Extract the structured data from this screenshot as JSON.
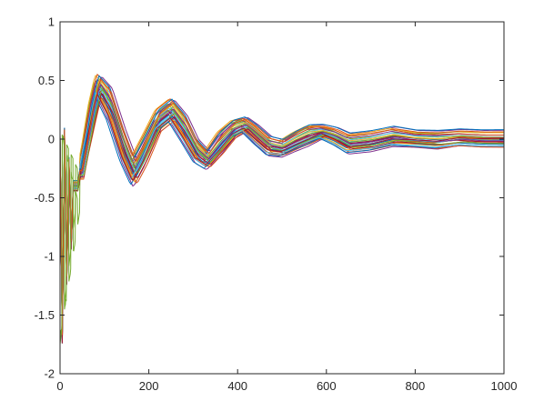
{
  "chart_data": {
    "type": "line",
    "title": "",
    "xlabel": "",
    "ylabel": "",
    "xlim": [
      0,
      1000
    ],
    "ylim": [
      -2,
      1
    ],
    "x_ticks": [
      0,
      200,
      400,
      600,
      800,
      1000
    ],
    "y_ticks": [
      -2,
      -1.5,
      -1,
      -0.5,
      0,
      0.5,
      1
    ],
    "x_tick_labels": [
      "0",
      "200",
      "400",
      "600",
      "800",
      "1000"
    ],
    "y_tick_labels": [
      "-2",
      "-1.5",
      "-1",
      "-0.5",
      "0",
      "0.5",
      "1"
    ],
    "grid": false,
    "legend": "none",
    "series_count": 30,
    "series_colors": [
      "#0072BD",
      "#D95319",
      "#EDB120",
      "#7E2F8E",
      "#77AC30",
      "#4DBEEE",
      "#A2142F"
    ],
    "envelope": {
      "x": [
        0,
        5,
        10,
        15,
        20,
        25,
        30,
        40,
        55,
        70,
        85,
        110,
        140,
        165,
        190,
        220,
        250,
        280,
        305,
        330,
        360,
        390,
        415,
        440,
        470,
        500,
        530,
        560,
        590,
        620,
        650,
        700,
        750,
        800,
        850,
        900,
        950,
        1000
      ],
      "mean": [
        0.0,
        -1.7,
        0.05,
        -1.2,
        -0.2,
        -0.9,
        -0.4,
        -0.4,
        -0.1,
        0.2,
        0.45,
        0.3,
        -0.05,
        -0.28,
        -0.1,
        0.15,
        0.24,
        0.08,
        -0.1,
        -0.18,
        -0.04,
        0.08,
        0.12,
        0.04,
        -0.06,
        -0.08,
        -0.02,
        0.03,
        0.06,
        0.02,
        -0.04,
        -0.02,
        0.02,
        0.0,
        -0.01,
        0.01,
        0.0,
        0.0
      ],
      "min": [
        0.0,
        -1.75,
        0.0,
        -1.25,
        -0.3,
        -1.0,
        -0.5,
        -0.45,
        -0.15,
        0.1,
        0.35,
        0.15,
        -0.2,
        -0.4,
        -0.25,
        0.05,
        0.1,
        -0.05,
        -0.2,
        -0.25,
        -0.15,
        0.0,
        0.05,
        -0.05,
        -0.15,
        -0.15,
        -0.1,
        -0.08,
        0.0,
        -0.05,
        -0.12,
        -0.1,
        -0.08,
        -0.06,
        -0.07,
        -0.05,
        -0.05,
        -0.05
      ],
      "max": [
        0.0,
        -1.65,
        0.1,
        -1.15,
        -0.1,
        -0.8,
        -0.3,
        -0.35,
        -0.05,
        0.3,
        0.55,
        0.45,
        0.1,
        -0.15,
        0.0,
        0.25,
        0.3,
        0.2,
        0.0,
        -0.1,
        0.05,
        0.15,
        0.17,
        0.1,
        0.0,
        -0.02,
        0.05,
        0.08,
        0.1,
        0.08,
        0.03,
        0.05,
        0.06,
        0.05,
        0.05,
        0.05,
        0.05,
        0.05
      ]
    }
  }
}
